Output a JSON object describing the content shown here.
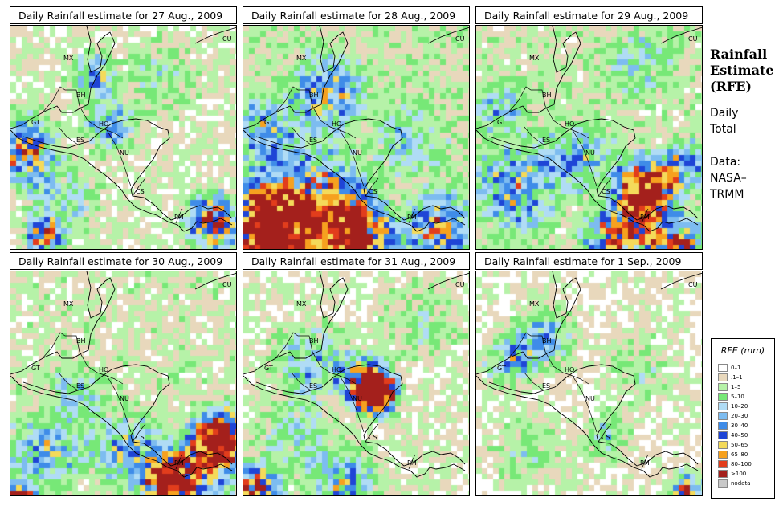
{
  "panels": [
    {
      "title": "Daily Rainfall estimate for  27 Aug., 2009"
    },
    {
      "title": "Daily Rainfall estimate for  28 Aug., 2009"
    },
    {
      "title": "Daily Rainfall estimate for  29 Aug., 2009"
    },
    {
      "title": "Daily Rainfall estimate for  30 Aug., 2009"
    },
    {
      "title": "Daily Rainfall estimate for  31 Aug., 2009"
    },
    {
      "title": "Daily Rainfall estimate for  1 Sep., 2009"
    }
  ],
  "country_labels": [
    "CU",
    "MX",
    "BH",
    "GT",
    "HO",
    "ES",
    "NU",
    "CS",
    "PM"
  ],
  "side": {
    "title_1": "Rainfall",
    "title_2": "Estimate",
    "title_3": "(RFE)",
    "line_1": "Daily",
    "line_2": "Total",
    "line_3": "Data:",
    "line_4": "NASA–",
    "line_5": "TRMM"
  },
  "legend": {
    "title": "RFE (mm)",
    "items": [
      {
        "label": "0–1",
        "color": "#ffffff"
      },
      {
        "label": ".1–1",
        "color": "#e8d8bc"
      },
      {
        "label": "1–5",
        "color": "#b6f2a8"
      },
      {
        "label": "5–10",
        "color": "#77e877"
      },
      {
        "label": "10–20",
        "color": "#b0dcf5"
      },
      {
        "label": "20–30",
        "color": "#7dbcf0"
      },
      {
        "label": "30–40",
        "color": "#3f8ce8"
      },
      {
        "label": "40–50",
        "color": "#1f45d6"
      },
      {
        "label": "50–65",
        "color": "#f4da5a"
      },
      {
        "label": "65–80",
        "color": "#f6a11f"
      },
      {
        "label": "80–100",
        "color": "#e23d1c"
      },
      {
        "label": ">100",
        "color": "#a4201c"
      },
      {
        "label": "nodata",
        "color": "#c8c8c8"
      }
    ]
  }
}
